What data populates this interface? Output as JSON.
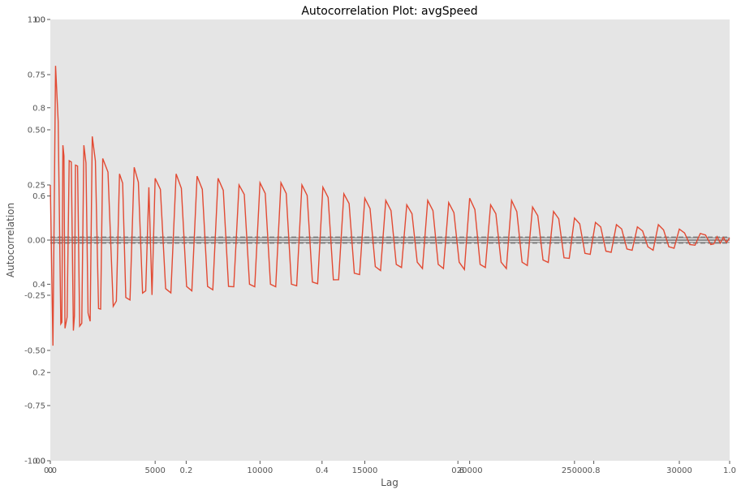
{
  "chart_data": {
    "type": "line",
    "title": "Autocorrelation Plot: avgSpeed",
    "xlabel": "Lag",
    "ylabel": "Autocorrelation",
    "xlim": [
      0,
      32400
    ],
    "ylim": [
      -1.0,
      1.0
    ],
    "x_ticks": [
      0,
      5000,
      10000,
      15000,
      20000,
      25000,
      30000
    ],
    "y_ticks": [
      -1.0,
      -0.75,
      -0.5,
      -0.25,
      0.0,
      0.25,
      0.5,
      0.75,
      1.0
    ],
    "x_tick_labels": [
      "0",
      "5000",
      "10000",
      "15000",
      "20000",
      "25000",
      "30000"
    ],
    "y_tick_labels": [
      "-1.00",
      "-0.75",
      "-0.50",
      "-0.25",
      "0.00",
      "0.25",
      "0.50",
      "0.75",
      "1.00"
    ],
    "overlay_axes": {
      "x_ticks": [
        0.0,
        0.2,
        0.4,
        0.6,
        0.8,
        1.0
      ],
      "x_tick_labels": [
        "0.0",
        "0.2",
        "0.4",
        "0.6",
        "0.8",
        "1.0"
      ],
      "y_ticks": [
        0.0,
        0.2,
        0.4,
        0.6,
        0.8,
        1.0
      ],
      "y_tick_labels": [
        "0.0",
        "0.2",
        "0.4",
        "0.6",
        "0.8",
        "1.0"
      ]
    },
    "confidence_bands": [
      0.0106,
      0.014,
      -0.0106,
      -0.014
    ],
    "grid": false,
    "series": [
      {
        "color": "#E24A33",
        "peaks": [
          {
            "x": 250,
            "y": 0.79
          },
          {
            "x": 500,
            "y": -0.38
          },
          {
            "x": 600,
            "y": 0.43
          },
          {
            "x": 700,
            "y": -0.4
          },
          {
            "x": 900,
            "y": 0.36
          },
          {
            "x": 1100,
            "y": -0.41
          },
          {
            "x": 1200,
            "y": 0.34
          },
          {
            "x": 1400,
            "y": -0.39
          },
          {
            "x": 1600,
            "y": 0.43
          },
          {
            "x": 1800,
            "y": -0.33
          },
          {
            "x": 2000,
            "y": 0.47
          },
          {
            "x": 2300,
            "y": -0.31
          },
          {
            "x": 2500,
            "y": 0.37
          },
          {
            "x": 3000,
            "y": -0.3
          },
          {
            "x": 3300,
            "y": 0.3
          },
          {
            "x": 3600,
            "y": -0.26
          },
          {
            "x": 4000,
            "y": 0.33
          },
          {
            "x": 4400,
            "y": -0.24
          },
          {
            "x": 5000,
            "y": 0.28
          },
          {
            "x": 5500,
            "y": -0.22
          },
          {
            "x": 6000,
            "y": 0.3
          },
          {
            "x": 6500,
            "y": -0.21
          },
          {
            "x": 7000,
            "y": 0.29
          },
          {
            "x": 7500,
            "y": -0.21
          },
          {
            "x": 8000,
            "y": 0.28
          },
          {
            "x": 8500,
            "y": -0.21
          },
          {
            "x": 9000,
            "y": 0.25
          },
          {
            "x": 9500,
            "y": -0.2
          },
          {
            "x": 10000,
            "y": 0.26
          },
          {
            "x": 10500,
            "y": -0.2
          },
          {
            "x": 11000,
            "y": 0.26
          },
          {
            "x": 11500,
            "y": -0.2
          },
          {
            "x": 12000,
            "y": 0.25
          },
          {
            "x": 12500,
            "y": -0.19
          },
          {
            "x": 13000,
            "y": 0.24
          },
          {
            "x": 13500,
            "y": -0.18
          },
          {
            "x": 14000,
            "y": 0.21
          },
          {
            "x": 14500,
            "y": -0.15
          },
          {
            "x": 15000,
            "y": 0.19
          },
          {
            "x": 15500,
            "y": -0.12
          },
          {
            "x": 16000,
            "y": 0.18
          },
          {
            "x": 16500,
            "y": -0.11
          },
          {
            "x": 17000,
            "y": 0.16
          },
          {
            "x": 17500,
            "y": -0.1
          },
          {
            "x": 18000,
            "y": 0.18
          },
          {
            "x": 18500,
            "y": -0.11
          },
          {
            "x": 19000,
            "y": 0.17
          },
          {
            "x": 19500,
            "y": -0.1
          },
          {
            "x": 20000,
            "y": 0.19
          },
          {
            "x": 20500,
            "y": -0.11
          },
          {
            "x": 21000,
            "y": 0.16
          },
          {
            "x": 21500,
            "y": -0.1
          },
          {
            "x": 22000,
            "y": 0.18
          },
          {
            "x": 22500,
            "y": -0.1
          },
          {
            "x": 23000,
            "y": 0.15
          },
          {
            "x": 23500,
            "y": -0.09
          },
          {
            "x": 24000,
            "y": 0.13
          },
          {
            "x": 24500,
            "y": -0.08
          },
          {
            "x": 25000,
            "y": 0.1
          },
          {
            "x": 25500,
            "y": -0.06
          },
          {
            "x": 26000,
            "y": 0.08
          },
          {
            "x": 26500,
            "y": -0.05
          },
          {
            "x": 27000,
            "y": 0.07
          },
          {
            "x": 27500,
            "y": -0.04
          },
          {
            "x": 28000,
            "y": 0.06
          },
          {
            "x": 28500,
            "y": -0.03
          },
          {
            "x": 29000,
            "y": 0.07
          },
          {
            "x": 29500,
            "y": -0.03
          },
          {
            "x": 30000,
            "y": 0.05
          },
          {
            "x": 30500,
            "y": -0.02
          },
          {
            "x": 31000,
            "y": 0.03
          },
          {
            "x": 31500,
            "y": -0.02
          },
          {
            "x": 32400,
            "y": 0.01
          }
        ]
      }
    ]
  }
}
